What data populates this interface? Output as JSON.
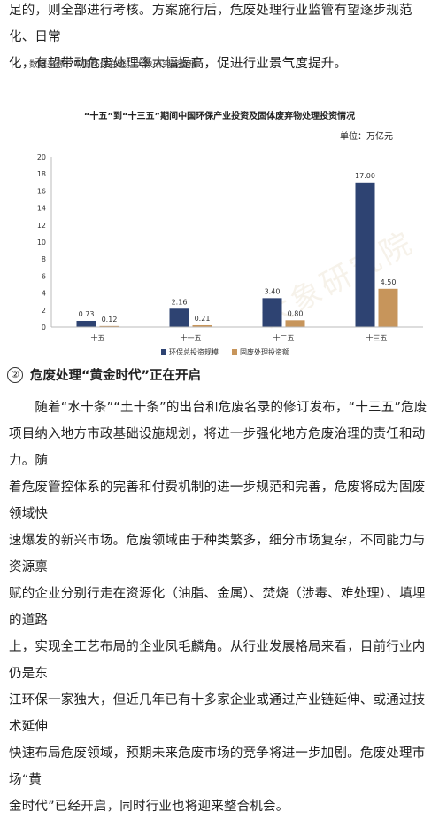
{
  "top_paragraph": [
    "足的，则全部进行考核。方案施行后，危废处理行业监管有望逐步规范化、日常",
    "化，有望带动危废处理率大幅提高，促进行业景气度提升。"
  ],
  "source_note": "数据来源：中国环保在线，大象研究院整理",
  "watermark": "大象研究院",
  "chart_data": {
    "type": "bar",
    "title": "“十五”到“十三五”期间中国环保产业投资及固体废弃物处理投资情况",
    "unit": "单位：万亿元",
    "categories": [
      "十五",
      "十一五",
      "十二五",
      "十三五"
    ],
    "series": [
      {
        "name": "环保总投资规模",
        "values": [
          0.73,
          2.16,
          3.4,
          17.0
        ],
        "labels": [
          "0.73",
          "2.16",
          "3.40",
          "17.00"
        ],
        "color": "#2e4372"
      },
      {
        "name": "固废处理投资额",
        "values": [
          0.12,
          0.21,
          0.8,
          4.5
        ],
        "labels": [
          "0.12",
          "0.21",
          "0.80",
          "4.50"
        ],
        "color": "#c7955b"
      }
    ],
    "ylim": [
      0,
      20
    ],
    "yticks": [
      "0",
      "2",
      "4",
      "6",
      "8",
      "10",
      "12",
      "14",
      "16",
      "18",
      "20"
    ],
    "grid": false,
    "legend": "bottom"
  },
  "section": {
    "number": "②",
    "title": "危废处理“黄金时代”正在开启"
  },
  "body_paragraph": [
    "　　随着“水十条”“土十条”的出台和危废名录的修订发布，“十三五”危废",
    "项目纳入地方市政基础设施规划，将进一步强化地方危废治理的责任和动力。随",
    "着危废管控体系的完善和付费机制的进一步规范和完善，危废将成为固废领域快",
    "速爆发的新兴市场。危废领域由于种类繁多，细分市场复杂，不同能力与资源禀",
    "赋的企业分别行走在资源化（油脂、金属）、焚烧（涉毒、难处理）、填埋的道路",
    "上，实现全工艺布局的企业凤毛麟角。从行业发展格局来看，目前行业内仍是东",
    "江环保一家独大，但近几年已有十多家企业或通过产业链延伸、或通过技术延伸",
    "快速布局危废领域，预期未来危废市场的竞争将进一步加剧。危废处理市场“黄",
    "金时代”已经开启，同时行业也将迎来整合机会。"
  ]
}
